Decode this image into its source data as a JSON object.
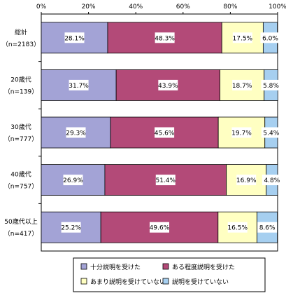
{
  "chart_data": {
    "type": "bar",
    "orientation": "horizontal",
    "stacked": true,
    "percent_stacked": true,
    "xlim": [
      0,
      100
    ],
    "x_ticks": [
      "0%",
      "20%",
      "40%",
      "60%",
      "80%",
      "100%"
    ],
    "categories": [
      {
        "line1": "総計",
        "line2": "（n=2183）"
      },
      {
        "line1": "20歳代",
        "line2": "（n=139）"
      },
      {
        "line1": "30歳代",
        "line2": "（n=777）"
      },
      {
        "line1": "40歳代",
        "line2": "（n=757）"
      },
      {
        "line1": "50歳代以上",
        "line2": "（n=417）"
      }
    ],
    "series": [
      {
        "name": "十分説明を受けた",
        "color": "#a3a3d6",
        "values": [
          28.1,
          31.7,
          29.3,
          26.9,
          25.2
        ]
      },
      {
        "name": "ある程度説明を受けた",
        "color": "#b34a78",
        "values": [
          48.3,
          43.9,
          45.6,
          51.4,
          49.6
        ]
      },
      {
        "name": "あまり説明を受けていない",
        "color": "#ffffc2",
        "values": [
          17.5,
          18.7,
          19.7,
          16.9,
          16.5
        ]
      },
      {
        "name": "説明を受けていない",
        "color": "#a6cff0",
        "values": [
          6.0,
          5.8,
          5.4,
          4.8,
          8.6
        ]
      }
    ],
    "value_label_suffix": "%",
    "legend_position": "bottom",
    "grid": false
  }
}
